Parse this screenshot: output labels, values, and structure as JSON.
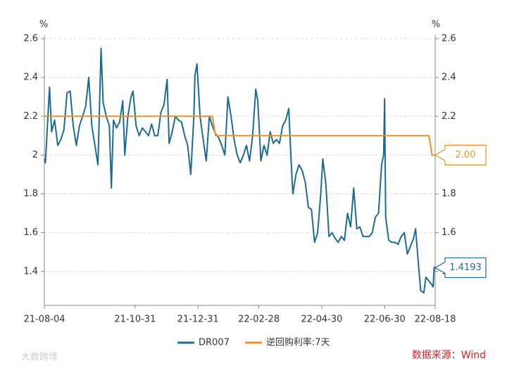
{
  "chart_data": {
    "type": "line",
    "ylabel": "%",
    "y2label": "%",
    "xlim": [
      "21-08-04",
      "22-08-18"
    ],
    "xticks": [
      "21-08-04",
      "21-10-31",
      "21-12-31",
      "22-02-28",
      "22-04-30",
      "22-06-30",
      "22-08-18"
    ],
    "ylim": [
      1.225,
      2.6
    ],
    "yticks": [
      1.4,
      1.6,
      1.8,
      2,
      2.2,
      2.4,
      2.6
    ],
    "y2lim": [
      1.225,
      2.6
    ],
    "y2ticks": [
      1.4,
      1.6,
      1.8,
      2,
      2.2,
      2.4,
      2.6
    ],
    "grid": true,
    "source": "数据来源：Wind",
    "watermark": "大数跨境",
    "series": [
      {
        "name": "DR007",
        "color": "#1f6b8e",
        "end_label": "1.4193",
        "x": [
          "21-08-04",
          "21-08-05",
          "21-08-09",
          "21-08-11",
          "21-08-14",
          "21-08-17",
          "21-08-20",
          "21-08-23",
          "21-08-26",
          "21-08-29",
          "21-09-01",
          "21-09-04",
          "21-09-07",
          "21-09-10",
          "21-09-13",
          "21-09-16",
          "21-09-19",
          "21-09-22",
          "21-09-25",
          "21-09-28",
          "21-09-30",
          "21-10-03",
          "21-10-06",
          "21-10-08",
          "21-10-10",
          "21-10-13",
          "21-10-16",
          "21-10-19",
          "21-10-21",
          "21-10-24",
          "21-10-27",
          "21-10-29",
          "21-11-01",
          "21-11-04",
          "21-11-07",
          "21-11-10",
          "21-11-13",
          "21-11-16",
          "21-11-19",
          "21-11-22",
          "21-11-25",
          "21-11-28",
          "21-12-01",
          "21-12-03",
          "21-12-06",
          "21-12-09",
          "21-12-12",
          "21-12-15",
          "21-12-18",
          "21-12-21",
          "21-12-24",
          "21-12-27",
          "21-12-28",
          "21-12-30",
          "22-01-02",
          "22-01-05",
          "22-01-08",
          "22-01-11",
          "22-01-14",
          "22-01-17",
          "22-01-20",
          "22-01-23",
          "22-01-26",
          "22-01-29",
          "22-02-01",
          "22-02-04",
          "22-02-07",
          "22-02-10",
          "22-02-13",
          "22-02-16",
          "22-02-19",
          "22-02-22",
          "22-02-25",
          "22-02-27",
          "22-03-02",
          "22-03-05",
          "22-03-08",
          "22-03-11",
          "22-03-14",
          "22-03-17",
          "22-03-20",
          "22-03-23",
          "22-03-26",
          "22-03-29",
          "22-03-31",
          "22-04-02",
          "22-04-05",
          "22-04-08",
          "22-04-11",
          "22-04-14",
          "22-04-17",
          "22-04-20",
          "22-04-23",
          "22-04-26",
          "22-04-29",
          "22-05-01",
          "22-05-04",
          "22-05-07",
          "22-05-10",
          "22-05-13",
          "22-05-16",
          "22-05-19",
          "22-05-22",
          "22-05-25",
          "22-05-28",
          "22-05-31",
          "22-06-03",
          "22-06-06",
          "22-06-09",
          "22-06-12",
          "22-06-15",
          "22-06-18",
          "22-06-21",
          "22-06-24",
          "22-06-27",
          "22-06-29",
          "22-06-30",
          "22-07-01",
          "22-07-04",
          "22-07-07",
          "22-07-10",
          "22-07-13",
          "22-07-16",
          "22-07-19",
          "22-07-22",
          "22-07-25",
          "22-07-28",
          "22-07-30",
          "22-08-02",
          "22-08-04",
          "22-08-07",
          "22-08-09",
          "22-08-12",
          "22-08-15",
          "22-08-16",
          "22-08-17",
          "22-08-18"
        ],
        "values": [
          1.98,
          1.96,
          2.35,
          2.12,
          2.18,
          2.05,
          2.08,
          2.13,
          2.32,
          2.33,
          2.15,
          2.05,
          2.15,
          2.2,
          2.25,
          2.4,
          2.15,
          2.05,
          1.95,
          2.55,
          2.27,
          2.2,
          2.15,
          1.83,
          2.18,
          2.14,
          2.17,
          2.28,
          2.0,
          2.2,
          2.3,
          2.33,
          2.15,
          2.1,
          2.14,
          2.12,
          2.1,
          2.16,
          2.1,
          2.1,
          2.22,
          2.26,
          2.39,
          2.06,
          2.12,
          2.2,
          2.18,
          2.17,
          2.1,
          2.05,
          1.9,
          2.2,
          2.41,
          2.47,
          2.2,
          2.08,
          1.97,
          2.2,
          2.15,
          2.11,
          2.09,
          2.05,
          2.0,
          2.3,
          2.2,
          2.08,
          2.0,
          1.96,
          2.0,
          2.05,
          1.97,
          2.1,
          2.34,
          2.28,
          1.97,
          2.05,
          2.0,
          2.12,
          2.06,
          2.08,
          2.06,
          2.15,
          2.18,
          2.24,
          2.0,
          1.8,
          1.9,
          1.95,
          1.92,
          1.86,
          1.73,
          1.72,
          1.55,
          1.6,
          1.8,
          1.98,
          1.85,
          1.58,
          1.6,
          1.57,
          1.55,
          1.58,
          1.56,
          1.7,
          1.63,
          1.83,
          1.62,
          1.63,
          1.58,
          1.58,
          1.58,
          1.6,
          1.68,
          1.7,
          1.95,
          2.0,
          2.29,
          1.68,
          1.56,
          1.55,
          1.55,
          1.54,
          1.58,
          1.6,
          1.49,
          1.53,
          1.57,
          1.62,
          1.42,
          1.3,
          1.29,
          1.37,
          1.35,
          1.33,
          1.32,
          1.42,
          1.4193
        ]
      },
      {
        "name": "逆回购利率:7天",
        "color": "#e8932a",
        "axis": "y2",
        "end_label": "2.00",
        "x": [
          "21-08-04",
          "22-01-14",
          "22-01-17",
          "22-08-12",
          "22-08-15",
          "22-08-18"
        ],
        "values": [
          2.2,
          2.2,
          2.1,
          2.1,
          2.0,
          2.0
        ]
      }
    ]
  }
}
